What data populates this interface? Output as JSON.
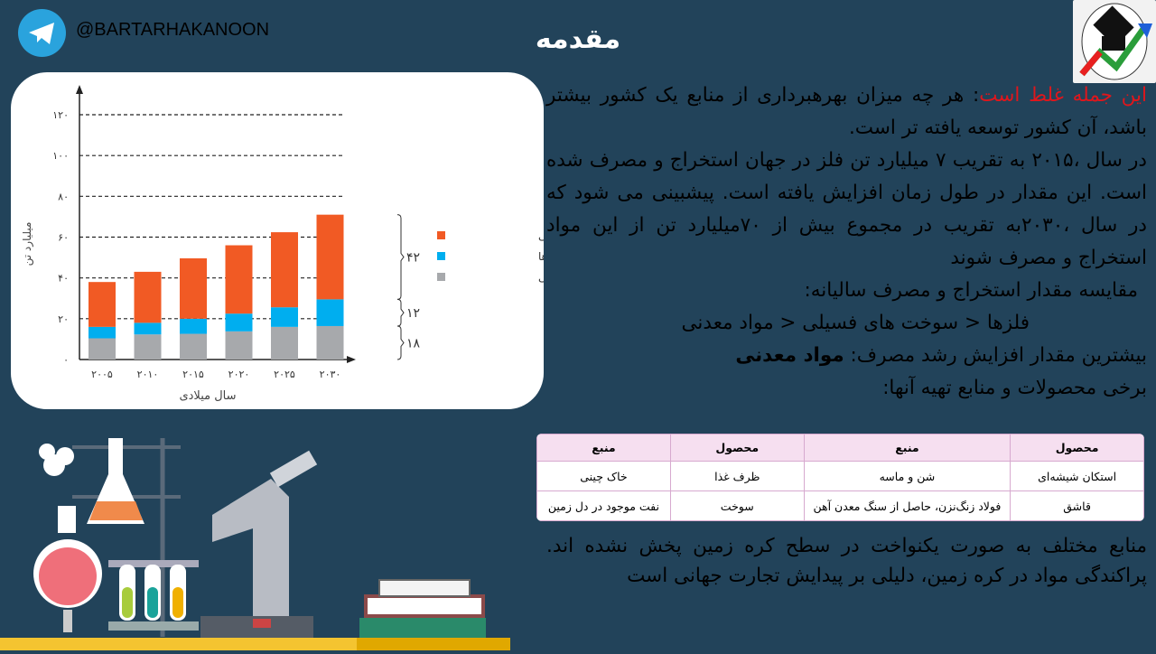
{
  "header": {
    "handle": "@BARTARHAKANOON",
    "title": "مقدمه",
    "telegram_icon": "telegram-icon",
    "logo": "bartarha-logo"
  },
  "chart_data": {
    "type": "bar",
    "stacked": true,
    "xlabel": "سال میلادی",
    "ylabel": "میلیارد تن",
    "categories": [
      "۲۰۰۵",
      "۲۰۱۰",
      "۲۰۱۵",
      "۲۰۲۰",
      "۲۰۲۵",
      "۲۰۳۰"
    ],
    "yticks": [
      "۰",
      "۲۰",
      "۴۰",
      "۶۰",
      "۸۰",
      "۱۰۰",
      "۱۲۰"
    ],
    "ylim": [
      0,
      120
    ],
    "grid": true,
    "legend_position": "right",
    "series": [
      {
        "name": "سوخت‌های فسیلی",
        "color": "#a7a9ac",
        "values": [
          10.4,
          12.3,
          12.6,
          13.8,
          16,
          16.4
        ]
      },
      {
        "name": "فلزها",
        "color": "#00aeef",
        "values": [
          5.6,
          5.7,
          7.4,
          8.7,
          9.6,
          13.1
        ]
      },
      {
        "name": "مواد معدنی",
        "color": "#f15a24",
        "values": [
          22,
          25,
          29.6,
          33.5,
          36.8,
          41.5
        ]
      }
    ],
    "annotations": [
      "۴۲",
      "۱۲",
      "۱۸"
    ]
  },
  "text": {
    "p1_red": "این جمله غلط است",
    "p1": ": هر چه میزان بهرهبرداری از منابع یک کشور بیشتر باشد، آن کشور توسعه یافته تر است.",
    "p2": "در سال ،۲۰۱۵ به تقریب ۷ میلیارد تن فلز در جهان استخراج و مصرف شده است. این مقدار در طول زمان افزایش یافته است. پیشبینی می شود که در سال ،۲۰۳۰به تقریب در مجموع بیش از ۷۰میلیارد تن از این مواد استخراج و مصرف شوند",
    "p3": "مقایسه مقدار استخراج و مصرف سالیانه:",
    "p4": "فلزها < سوخت های فسیلی < مواد معدنی",
    "p5": "بیشترین مقدار افزایش رشد مصرف: ",
    "p5_bold": "مواد معدنی",
    "p6": "برخی محصولات و منابع تهیه آنها:"
  },
  "table": {
    "headers": [
      "محصول",
      "منبع",
      "محصول",
      "منبع"
    ],
    "rows": [
      [
        "استکان شیشه‌ای",
        "شن و ماسه",
        "ظرف غذا",
        "خاک چینی"
      ],
      [
        "قاشق",
        "فولاد زنگ‌نزن، حاصل از سنگ معدن آهن",
        "سوخت",
        "نفت موجود در دل زمین"
      ]
    ]
  },
  "bottom_text": "منابع مختلف به صورت یکنواخت در سطح کره زمین پخش نشده اند. پراکندگی مواد در کره زمین، دلیلی بر پیدایش تجارت جهانی است"
}
